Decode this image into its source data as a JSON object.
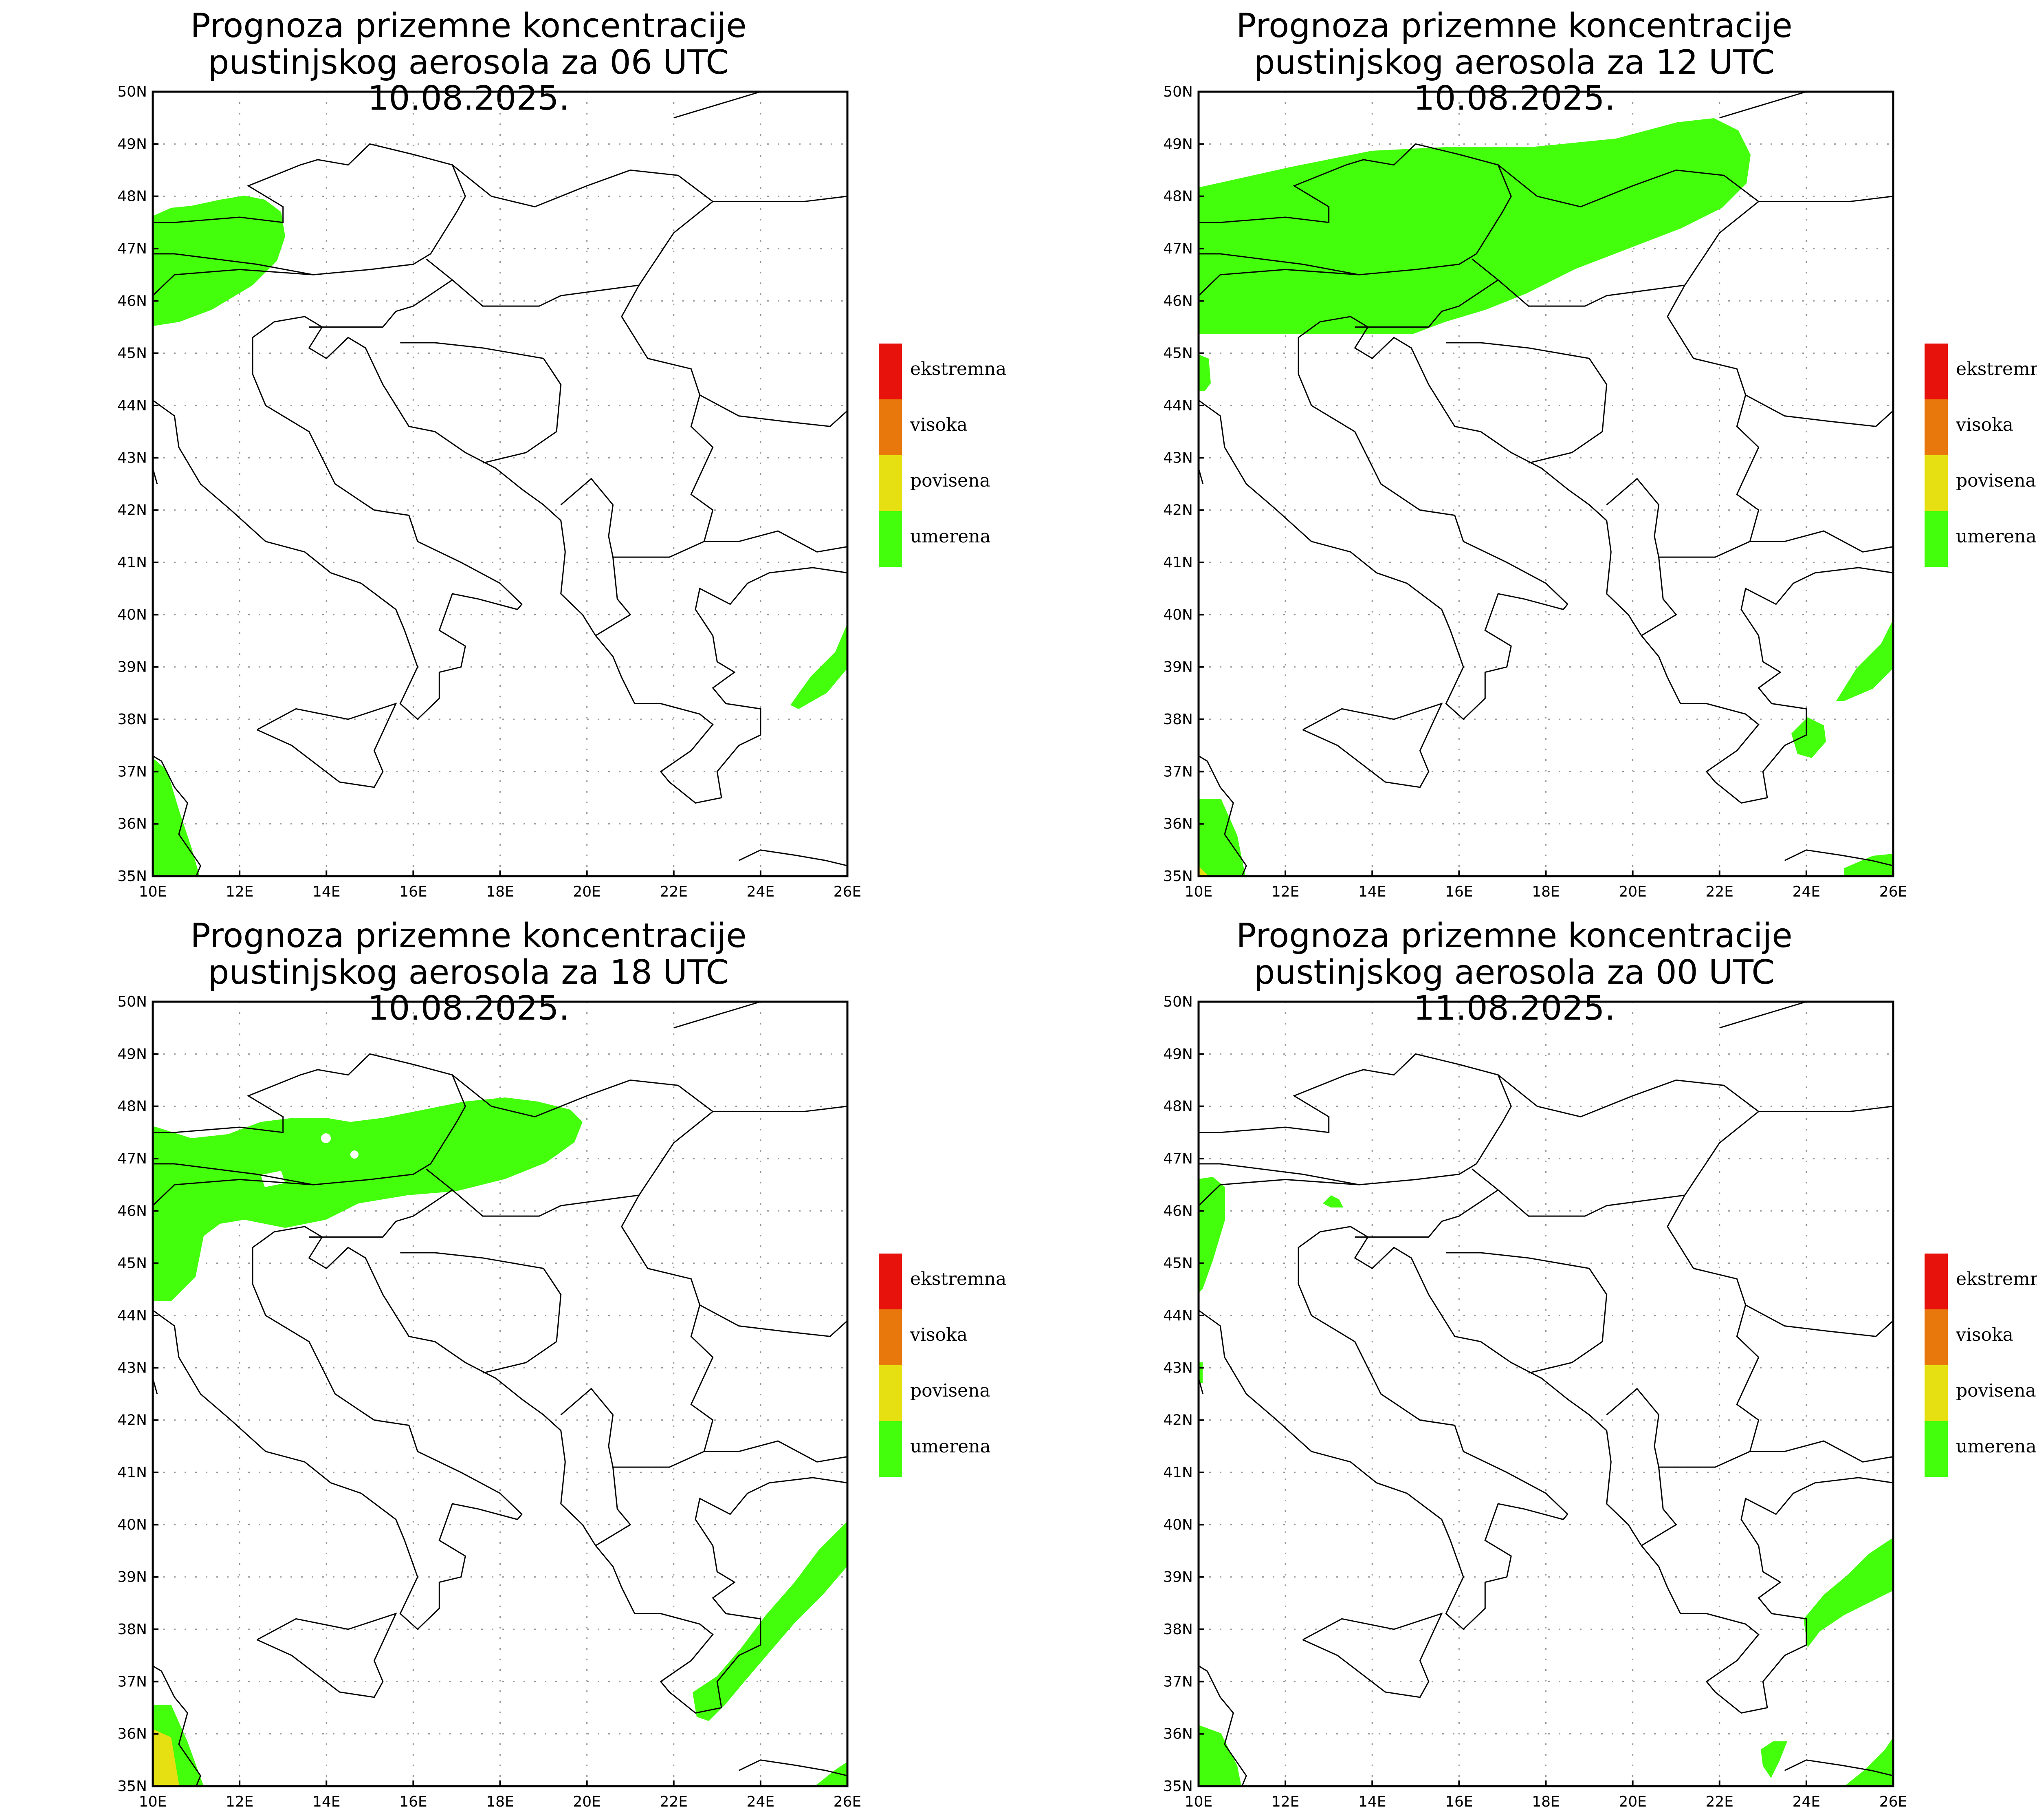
{
  "panels": [
    {
      "title_line1": "Prognoza prizemne koncentracije",
      "title_line2": "pustinjskog aerosola za 06 UTC 10.08.2025."
    },
    {
      "title_line1": "Prognoza prizemne koncentracije",
      "title_line2": "pustinjskog aerosola za 12 UTC 10.08.2025."
    },
    {
      "title_line1": "Prognoza prizemne koncentracije",
      "title_line2": "pustinjskog aerosola za 18 UTC 10.08.2025."
    },
    {
      "title_line1": "Prognoza prizemne koncentracije",
      "title_line2": "pustinjskog aerosola za 00 UTC 11.08.2025."
    }
  ],
  "axes": {
    "lat_labels": [
      "50N",
      "49N",
      "48N",
      "47N",
      "46N",
      "45N",
      "44N",
      "43N",
      "42N",
      "41N",
      "40N",
      "39N",
      "38N",
      "37N",
      "36N",
      "35N"
    ],
    "lon_labels": [
      "10E",
      "12E",
      "14E",
      "16E",
      "18E",
      "20E",
      "22E",
      "24E",
      "26E"
    ]
  },
  "legend": [
    {
      "label": "ekstremna",
      "color": "#e8120c"
    },
    {
      "label": "visoka",
      "color": "#e8780c"
    },
    {
      "label": "povisena",
      "color": "#e6e012"
    },
    {
      "label": "umerena",
      "color": "#44ff0c"
    }
  ],
  "colors": {
    "dust_moderate": "#44ff0c",
    "dust_elevated": "#e6e012",
    "grid": "#999999",
    "coast": "#000000"
  }
}
